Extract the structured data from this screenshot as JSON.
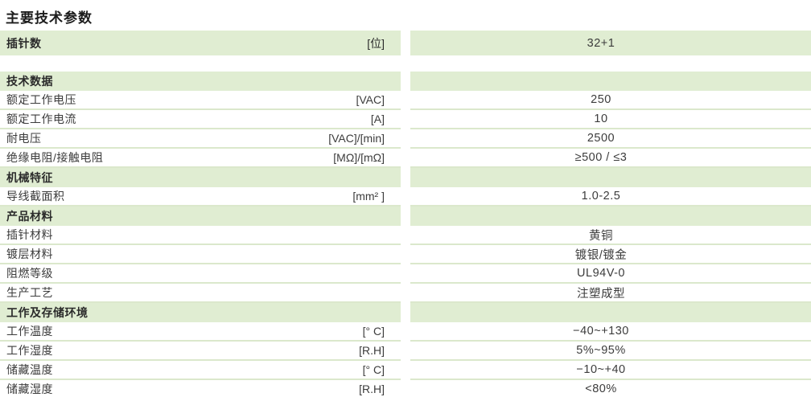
{
  "title": "主要技术参数",
  "colors": {
    "band_green": "#e0edd2",
    "separator_green": "#dbe8cc",
    "text": "#3c3c3c"
  },
  "table": {
    "rows": [
      {
        "type": "header-value",
        "label": "插针数",
        "unit": "[位]",
        "value": "32+1"
      },
      {
        "type": "spacer"
      },
      {
        "type": "header",
        "label": "技术数据"
      },
      {
        "type": "data",
        "label": "额定工作电压",
        "unit": "[VAC]",
        "value": "250"
      },
      {
        "type": "data",
        "label": "额定工作电流",
        "unit": "[A]",
        "value": "10"
      },
      {
        "type": "data",
        "label": "耐电压",
        "unit": "[VAC]/[min]",
        "value": "2500"
      },
      {
        "type": "data",
        "label": "绝缘电阻/接触电阻",
        "unit": "[MΩ]/[mΩ]",
        "value": "≥500 / ≤3"
      },
      {
        "type": "header",
        "label": "机械特征"
      },
      {
        "type": "data",
        "label": "导线截面积",
        "unit": "[mm² ]",
        "value": "1.0-2.5"
      },
      {
        "type": "header",
        "label": "产品材料"
      },
      {
        "type": "data",
        "label": "插针材料",
        "unit": "",
        "value": "黄铜"
      },
      {
        "type": "data",
        "label": "镀层材料",
        "unit": "",
        "value": "镀银/镀金"
      },
      {
        "type": "data",
        "label": "阻燃等级",
        "unit": "",
        "value": "UL94V-0"
      },
      {
        "type": "data",
        "label": "生产工艺",
        "unit": "",
        "value": "注塑成型"
      },
      {
        "type": "header",
        "label": "工作及存储环境"
      },
      {
        "type": "data",
        "label": "工作温度",
        "unit": "[° C]",
        "value": "−40~+130"
      },
      {
        "type": "data",
        "label": "工作湿度",
        "unit": "[R.H]",
        "value": "5%~95%"
      },
      {
        "type": "data",
        "label": "储藏温度",
        "unit": "[° C]",
        "value": "−10~+40"
      },
      {
        "type": "data",
        "label": "储藏湿度",
        "unit": "[R.H]",
        "value": "<80%"
      }
    ]
  }
}
